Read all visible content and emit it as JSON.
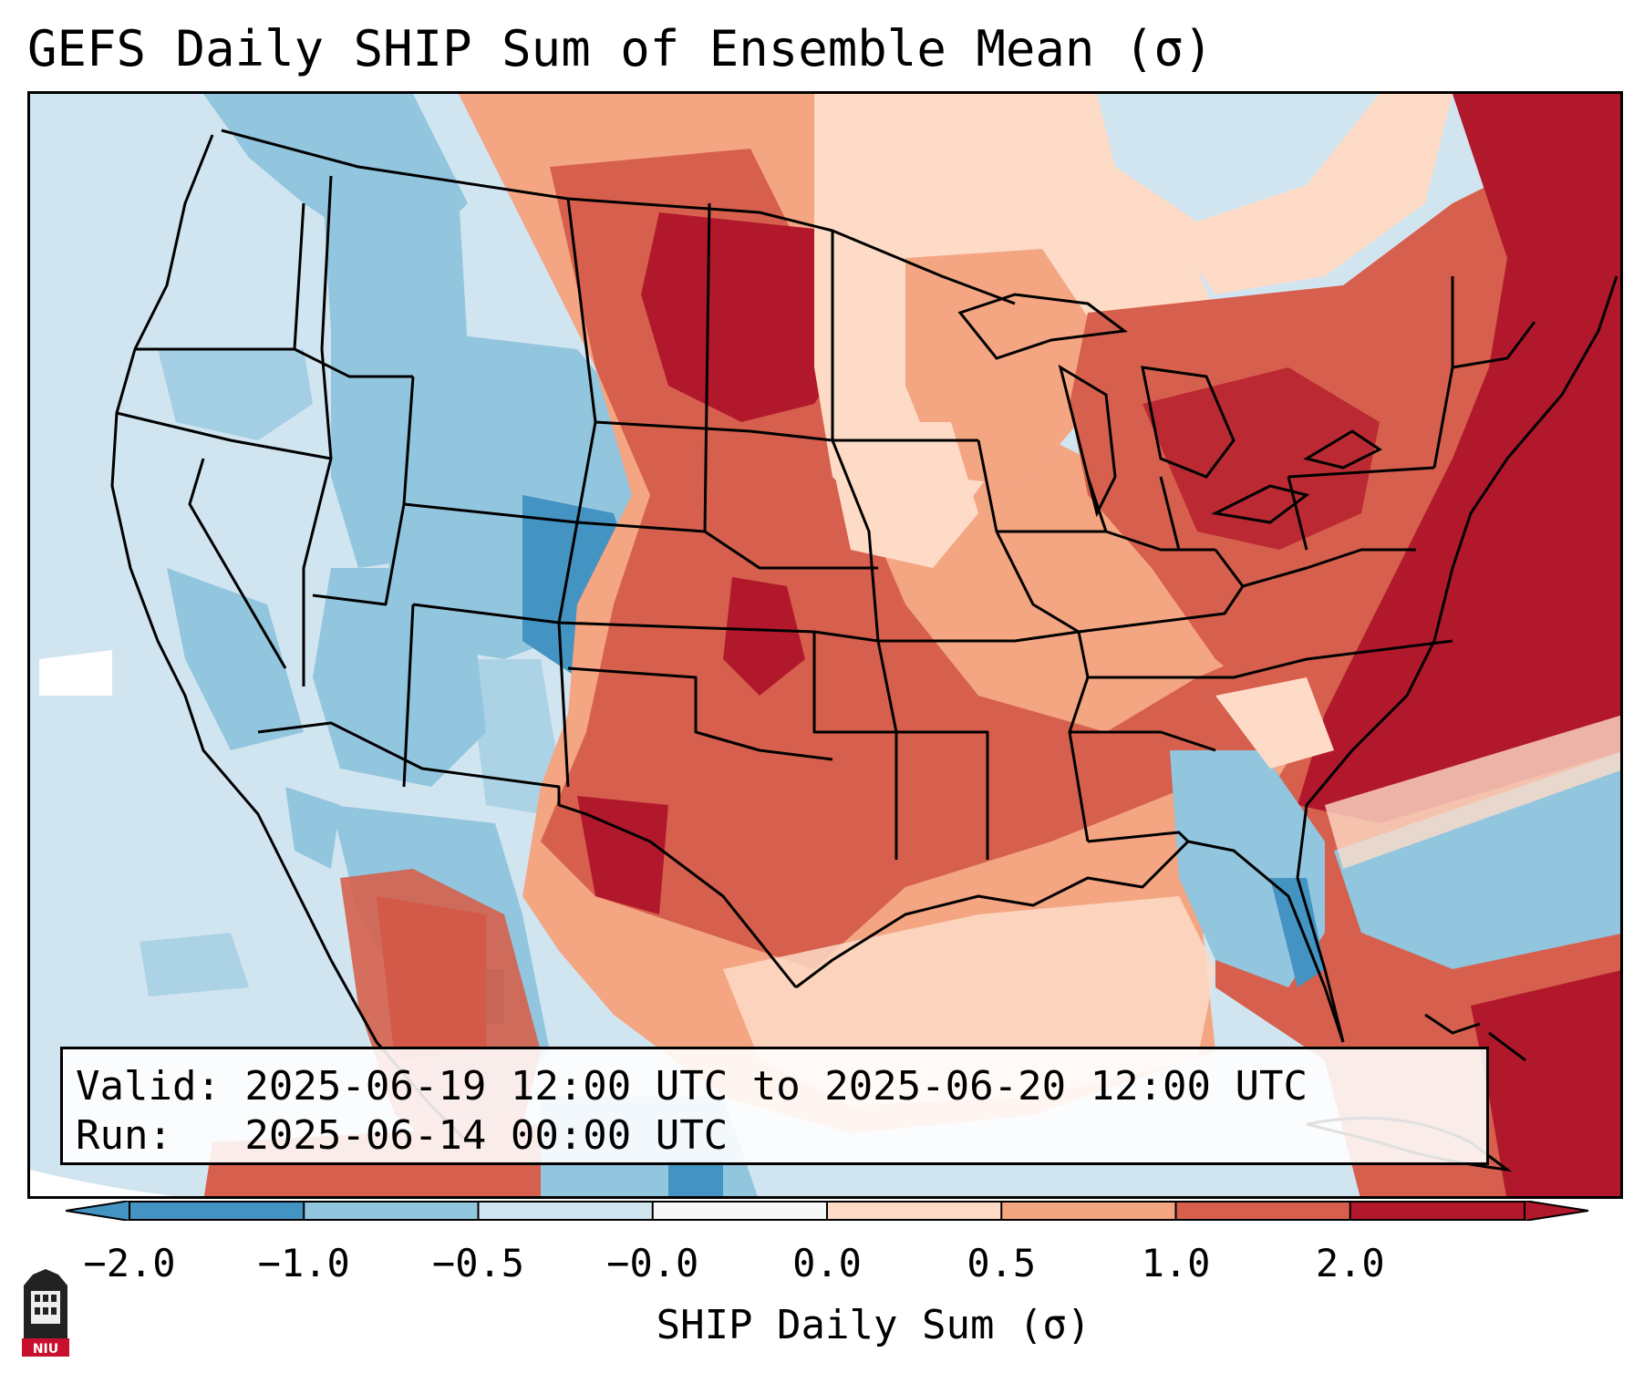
{
  "title": "GEFS Daily SHIP Sum of Ensemble Mean (σ)",
  "info": {
    "valid_line": "Valid: 2025-06-19 12:00 UTC to 2025-06-20 12:00 UTC",
    "run_line": "Run:   2025-06-14 00:00 UTC"
  },
  "colorbar": {
    "label": "SHIP Daily Sum (σ)",
    "ticks": [
      "−2.0",
      "−1.0",
      "−0.5",
      "−0.0",
      "0.0",
      "0.5",
      "1.0",
      "2.0"
    ],
    "colors": [
      "#4393c3",
      "#92c5de",
      "#d1e5f0",
      "#f7f7f7",
      "#fddbc7",
      "#f4a582",
      "#d6604d",
      "#b2182b"
    ],
    "extend": "both"
  },
  "map": {
    "region": "Contiguous United States",
    "colors": {
      "ocean": "#d1e5f0",
      "light_red": "#fddbc7",
      "medium_red": "#f4a582",
      "red": "#d6604d",
      "dark_red": "#b2182b",
      "light_blue": "#92c5de",
      "blue": "#4393c3",
      "white": "#f7f7f7"
    }
  },
  "logo": {
    "text": "NIU"
  }
}
